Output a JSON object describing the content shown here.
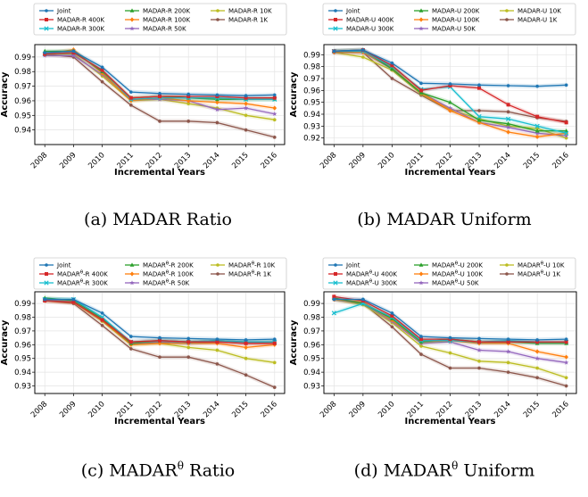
{
  "colors": {
    "Joint": "#1f77b4",
    "400K": "#d62728",
    "300K": "#17becf",
    "200K": "#2ca02c",
    "100K": "#ff7f0e",
    "50K": "#9467bd",
    "10K": "#bcbd22",
    "1K": "#8c564b"
  },
  "captions": [
    {
      "pre": "(a) MADAR Ratio",
      "sup": "",
      "post": ""
    },
    {
      "pre": "(b) MADAR Uniform",
      "sup": "",
      "post": ""
    },
    {
      "pre": "(c) MADAR",
      "sup": "θ",
      "post": " Ratio"
    },
    {
      "pre": "(d) MADAR",
      "sup": "θ",
      "post": " Uniform"
    }
  ],
  "chart_data": [
    {
      "type": "line",
      "xlabel": "Incremental Years",
      "ylabel": "Accuracy",
      "x": [
        2008,
        2009,
        2010,
        2011,
        2012,
        2013,
        2014,
        2015,
        2016
      ],
      "ylim": [
        0.93,
        0.9985
      ],
      "yticks": [
        0.94,
        0.95,
        0.96,
        0.97,
        0.98,
        0.99
      ],
      "legend_order": [
        "Joint",
        "400K",
        "300K",
        "200K",
        "100K",
        "50K",
        "10K",
        "1K"
      ],
      "series": [
        {
          "key": "Joint",
          "name": "Joint",
          "marker": "circle",
          "values": [
            0.993,
            0.994,
            0.983,
            0.966,
            0.965,
            0.9645,
            0.964,
            0.9635,
            0.964
          ]
        },
        {
          "key": "400K",
          "name": "MADAR-R 400K",
          "marker": "square",
          "values": [
            0.992,
            0.993,
            0.981,
            0.962,
            0.963,
            0.963,
            0.963,
            0.962,
            0.962
          ]
        },
        {
          "key": "300K",
          "name": "MADAR-R 300K",
          "marker": "x",
          "values": [
            0.992,
            0.993,
            0.981,
            0.961,
            0.962,
            0.962,
            0.962,
            0.961,
            0.961
          ]
        },
        {
          "key": "200K",
          "name": "MADAR-R 200K",
          "marker": "triangle",
          "values": [
            0.994,
            0.994,
            0.98,
            0.962,
            0.963,
            0.962,
            0.961,
            0.961,
            0.961
          ]
        },
        {
          "key": "100K",
          "name": "MADAR-R 100K",
          "marker": "diamond",
          "values": [
            0.992,
            0.995,
            0.979,
            0.96,
            0.962,
            0.96,
            0.959,
            0.958,
            0.955
          ]
        },
        {
          "key": "50K",
          "name": "MADAR-R 50K",
          "marker": "star",
          "values": [
            0.991,
            0.991,
            0.978,
            0.961,
            0.961,
            0.96,
            0.954,
            0.955,
            0.951
          ]
        },
        {
          "key": "10K",
          "name": "MADAR-R 10K",
          "marker": "circle",
          "values": [
            0.992,
            0.992,
            0.977,
            0.96,
            0.961,
            0.958,
            0.955,
            0.95,
            0.947
          ]
        },
        {
          "key": "1K",
          "name": "MADAR-R 1K",
          "marker": "circle",
          "values": [
            0.992,
            0.99,
            0.973,
            0.957,
            0.946,
            0.946,
            0.945,
            0.94,
            0.935
          ]
        }
      ]
    },
    {
      "type": "line",
      "xlabel": "Incremental Years",
      "ylabel": "Accuracy",
      "x": [
        2008,
        2009,
        2010,
        2011,
        2012,
        2013,
        2014,
        2015,
        2016
      ],
      "ylim": [
        0.9145,
        0.9985
      ],
      "yticks": [
        0.92,
        0.93,
        0.94,
        0.95,
        0.96,
        0.97,
        0.98,
        0.99
      ],
      "legend_order": [
        "Joint",
        "400K",
        "300K",
        "200K",
        "100K",
        "50K",
        "10K",
        "1K"
      ],
      "series": [
        {
          "key": "Joint",
          "name": "Joint",
          "marker": "circle",
          "values": [
            0.993,
            0.994,
            0.983,
            0.966,
            0.9655,
            0.9645,
            0.964,
            0.9635,
            0.9645
          ]
        },
        {
          "key": "400K",
          "name": "MADAR-U 400K",
          "marker": "square",
          "values": [
            0.993,
            0.994,
            0.981,
            0.96,
            0.964,
            0.962,
            0.948,
            0.938,
            0.933
          ]
        },
        {
          "key": "300K",
          "name": "MADAR-U 300K",
          "marker": "x",
          "values": [
            0.993,
            0.993,
            0.98,
            0.961,
            0.963,
            0.938,
            0.936,
            0.93,
            0.924
          ]
        },
        {
          "key": "200K",
          "name": "MADAR-U 200K",
          "marker": "triangle",
          "values": [
            0.993,
            0.994,
            0.978,
            0.958,
            0.95,
            0.935,
            0.932,
            0.926,
            0.926
          ]
        },
        {
          "key": "100K",
          "name": "MADAR-U 100K",
          "marker": "diamond",
          "values": [
            0.992,
            0.992,
            0.979,
            0.958,
            0.943,
            0.933,
            0.925,
            0.921,
            0.924
          ]
        },
        {
          "key": "50K",
          "name": "MADAR-U 50K",
          "marker": "star",
          "values": [
            0.992,
            0.992,
            0.978,
            0.958,
            0.945,
            0.933,
            0.929,
            0.924,
            0.922
          ]
        },
        {
          "key": "10K",
          "name": "MADAR-U 10K",
          "marker": "circle",
          "values": [
            0.992,
            0.988,
            0.977,
            0.957,
            0.944,
            0.936,
            0.93,
            0.928,
            0.92
          ]
        },
        {
          "key": "1K",
          "name": "MADAR-U 1K",
          "marker": "circle",
          "values": [
            0.993,
            0.992,
            0.97,
            0.956,
            0.943,
            0.943,
            0.942,
            0.937,
            0.934
          ]
        }
      ]
    },
    {
      "type": "line",
      "xlabel": "Incremental Years",
      "ylabel": "Accuracy",
      "x": [
        2008,
        2009,
        2010,
        2011,
        2012,
        2013,
        2014,
        2015,
        2016
      ],
      "ylim": [
        0.9245,
        0.9985
      ],
      "yticks": [
        0.93,
        0.94,
        0.95,
        0.96,
        0.97,
        0.98,
        0.99
      ],
      "legend_order": [
        "Joint",
        "400K",
        "300K",
        "200K",
        "100K",
        "50K",
        "10K",
        "1K"
      ],
      "series": [
        {
          "key": "Joint",
          "name": "Joint",
          "marker": "circle",
          "values": [
            0.993,
            0.993,
            0.983,
            0.966,
            0.965,
            0.9645,
            0.964,
            0.9635,
            0.964
          ]
        },
        {
          "key": "400K",
          "name": "MADAR^θ-R 400K",
          "marker": "square",
          "values": [
            0.992,
            0.991,
            0.978,
            0.962,
            0.963,
            0.962,
            0.962,
            0.961,
            0.961
          ]
        },
        {
          "key": "300K",
          "name": "MADAR^θ-R 300K",
          "marker": "x",
          "values": [
            0.993,
            0.993,
            0.98,
            0.962,
            0.963,
            0.962,
            0.963,
            0.962,
            0.962
          ]
        },
        {
          "key": "200K",
          "name": "MADAR^θ-R 200K",
          "marker": "triangle",
          "values": [
            0.994,
            0.992,
            0.979,
            0.961,
            0.963,
            0.962,
            0.963,
            0.962,
            0.962
          ]
        },
        {
          "key": "100K",
          "name": "MADAR^θ-R 100K",
          "marker": "diamond",
          "values": [
            0.992,
            0.991,
            0.978,
            0.96,
            0.961,
            0.961,
            0.961,
            0.958,
            0.96
          ]
        },
        {
          "key": "50K",
          "name": "MADAR^θ-R 50K",
          "marker": "star",
          "values": [
            0.993,
            0.991,
            0.978,
            0.961,
            0.962,
            0.961,
            0.962,
            0.961,
            0.962
          ]
        },
        {
          "key": "10K",
          "name": "MADAR^θ-R 10K",
          "marker": "circle",
          "values": [
            0.993,
            0.991,
            0.977,
            0.96,
            0.961,
            0.958,
            0.956,
            0.95,
            0.947
          ]
        },
        {
          "key": "1K",
          "name": "MADAR^θ-R 1K",
          "marker": "circle",
          "values": [
            0.992,
            0.99,
            0.974,
            0.957,
            0.951,
            0.951,
            0.946,
            0.938,
            0.929
          ]
        }
      ]
    },
    {
      "type": "line",
      "xlabel": "Incremental Years",
      "ylabel": "Accuracy",
      "x": [
        2008,
        2009,
        2010,
        2011,
        2012,
        2013,
        2014,
        2015,
        2016
      ],
      "ylim": [
        0.9245,
        0.9985
      ],
      "yticks": [
        0.93,
        0.94,
        0.95,
        0.96,
        0.97,
        0.98,
        0.99
      ],
      "legend_order": [
        "Joint",
        "400K",
        "300K",
        "200K",
        "100K",
        "50K",
        "10K",
        "1K"
      ],
      "series": [
        {
          "key": "Joint",
          "name": "Joint",
          "marker": "circle",
          "values": [
            0.993,
            0.993,
            0.983,
            0.966,
            0.965,
            0.9645,
            0.964,
            0.9635,
            0.964
          ]
        },
        {
          "key": "400K",
          "name": "MADAR^θ-U 400K",
          "marker": "square",
          "values": [
            0.995,
            0.992,
            0.981,
            0.964,
            0.964,
            0.962,
            0.962,
            0.962,
            0.962
          ]
        },
        {
          "key": "300K",
          "name": "MADAR^θ-U 300K",
          "marker": "x",
          "values": [
            0.983,
            0.99,
            0.98,
            0.963,
            0.963,
            0.962,
            0.963,
            0.962,
            0.962
          ]
        },
        {
          "key": "200K",
          "name": "MADAR^θ-U 200K",
          "marker": "triangle",
          "values": [
            0.994,
            0.99,
            0.979,
            0.962,
            0.964,
            0.962,
            0.962,
            0.961,
            0.961
          ]
        },
        {
          "key": "100K",
          "name": "MADAR^θ-U 100K",
          "marker": "diamond",
          "values": [
            0.993,
            0.991,
            0.978,
            0.962,
            0.963,
            0.961,
            0.961,
            0.955,
            0.951
          ]
        },
        {
          "key": "50K",
          "name": "MADAR^θ-U 50K",
          "marker": "star",
          "values": [
            0.993,
            0.99,
            0.977,
            0.961,
            0.962,
            0.956,
            0.955,
            0.95,
            0.947
          ]
        },
        {
          "key": "10K",
          "name": "MADAR^θ-U 10K",
          "marker": "circle",
          "values": [
            0.993,
            0.989,
            0.976,
            0.959,
            0.954,
            0.948,
            0.947,
            0.943,
            0.936
          ]
        },
        {
          "key": "1K",
          "name": "MADAR^θ-U 1K",
          "marker": "circle",
          "values": [
            0.993,
            0.99,
            0.973,
            0.953,
            0.943,
            0.943,
            0.94,
            0.936,
            0.93
          ]
        }
      ]
    }
  ]
}
